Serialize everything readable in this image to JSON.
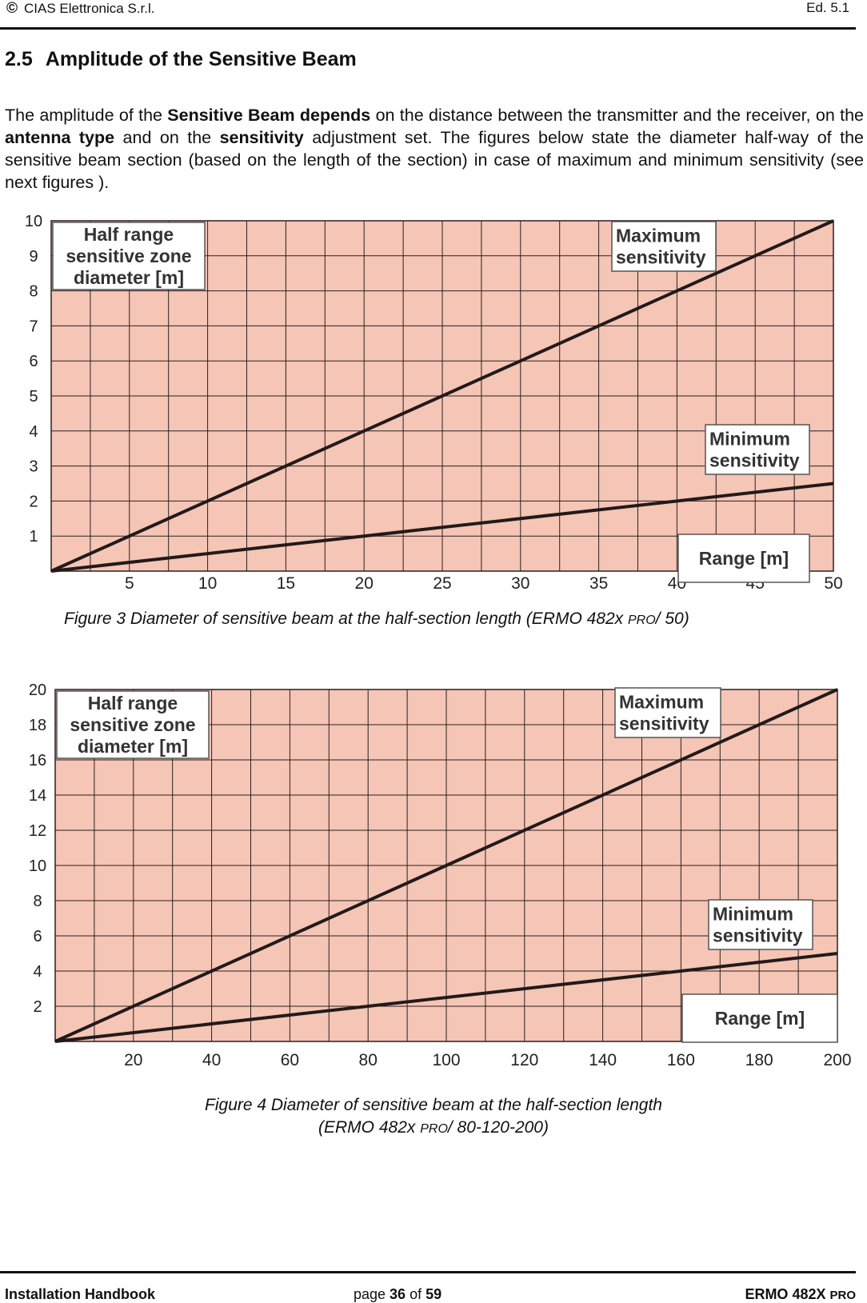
{
  "header": {
    "copyright_symbol": "©",
    "company": "CIAS Elettronica S.r.l.",
    "edition": "Ed. 5.1"
  },
  "section": {
    "number": "2.5",
    "title": "Amplitude of the Sensitive Beam"
  },
  "paragraph": {
    "t1": "The amplitude of the ",
    "b1": "Sensitive Beam depends",
    "t2": " on the distance between the transmitter and the receiver, on the ",
    "b2": "antenna type",
    "t3": " and on the ",
    "b3": "sensitivity",
    "t4": " adjustment set. The figures below state the diameter half-way of the sensitive beam section (based on the length of the section) in case of maximum and minimum sensitivity (see next figures )."
  },
  "chart_data": [
    {
      "type": "line",
      "ylabel": "Half range sensitive zone diameter [m]",
      "xlabel": "Range [m]",
      "xlim": [
        0,
        50
      ],
      "ylim": [
        0,
        10
      ],
      "x_ticks": [
        "5",
        "10",
        "15",
        "20",
        "25",
        "30",
        "35",
        "40",
        "45",
        "50"
      ],
      "y_ticks": [
        "1",
        "2",
        "3",
        "4",
        "5",
        "6",
        "7",
        "8",
        "9",
        "10"
      ],
      "grid": true,
      "series": [
        {
          "name": "Maximum sensitivity",
          "x": [
            0,
            50
          ],
          "y": [
            0,
            10
          ]
        },
        {
          "name": "Minimum sensitivity",
          "x": [
            0,
            50
          ],
          "y": [
            0,
            2.5
          ]
        }
      ],
      "caption": {
        "prefix": "Figure  3  Diameter of sensitive beam  at the half-section length (ERMO 482x ",
        "small": "PRO",
        "suffix": "/ 50)"
      }
    },
    {
      "type": "line",
      "ylabel": "Half range sensitive zone diameter [m]",
      "xlabel": "Range [m]",
      "xlim": [
        0,
        200
      ],
      "ylim": [
        0,
        20
      ],
      "x_ticks": [
        "20",
        "40",
        "60",
        "80",
        "100",
        "120",
        "140",
        "160",
        "180",
        "200"
      ],
      "y_ticks": [
        "2",
        "4",
        "6",
        "8",
        "10",
        "12",
        "14",
        "16",
        "18",
        "20"
      ],
      "grid": true,
      "series": [
        {
          "name": "Maximum sensitivity",
          "x": [
            0,
            200
          ],
          "y": [
            0,
            20
          ]
        },
        {
          "name": "Minimum sensitivity",
          "x": [
            0,
            200
          ],
          "y": [
            0,
            5
          ]
        }
      ],
      "caption": {
        "line1": "Figure  4  Diameter of sensitive beam  at the half-section length",
        "prefix": "(ERMO 482x ",
        "small": "PRO",
        "suffix": "/ 80-120-200)"
      }
    }
  ],
  "colors": {
    "plot_fill": "#f5c5b5",
    "grid": "#2a2020",
    "lines": "#221a1a"
  },
  "footer": {
    "left": "Installation Handbook",
    "page_prefix": "page ",
    "page_number": "36",
    "page_mid": " of ",
    "page_total": "59",
    "product": "ERMO 482X ",
    "product_small": "PRO"
  }
}
